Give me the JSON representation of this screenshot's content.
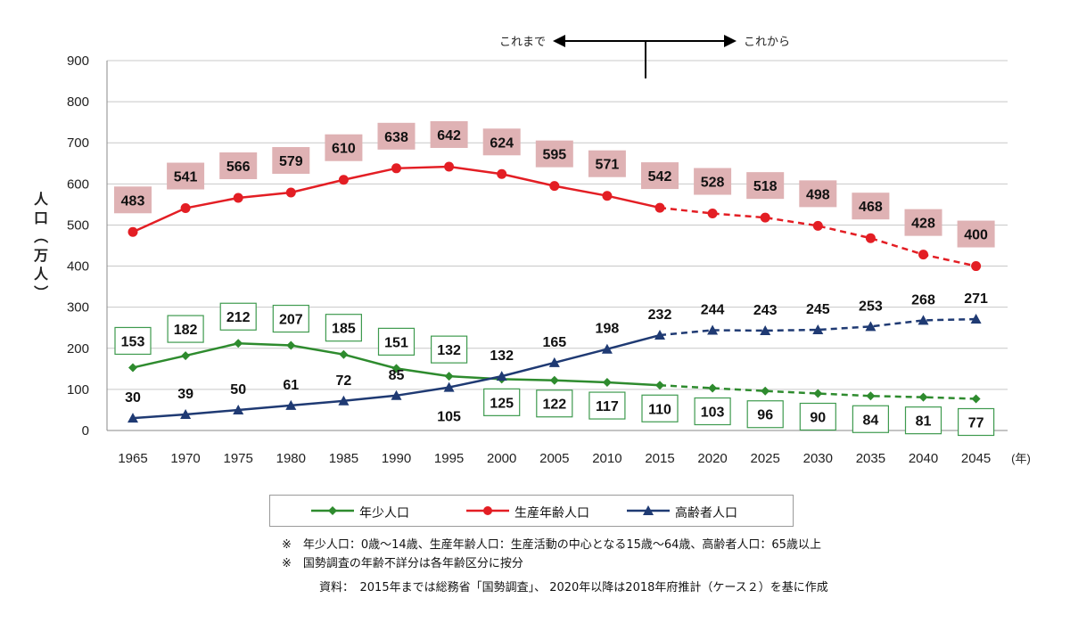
{
  "chart_data": {
    "type": "line",
    "x": [
      "1965",
      "1970",
      "1975",
      "1980",
      "1985",
      "1990",
      "1995",
      "2000",
      "2005",
      "2010",
      "2015",
      "2020",
      "2025",
      "2030",
      "2035",
      "2040",
      "2045"
    ],
    "x_unit": "(年)",
    "ylabel": "人口（万人）",
    "ylim": [
      0,
      900
    ],
    "yticks": [
      "0",
      "100",
      "200",
      "300",
      "400",
      "500",
      "600",
      "700",
      "800",
      "900"
    ],
    "grid": true,
    "split_labels": {
      "left": "これまで",
      "right": "これから",
      "at": "2015"
    },
    "series": [
      {
        "name": "生産年齢人口",
        "color": "#e31e24",
        "marker": "circle",
        "label_style": "pink-box",
        "values": [
          483,
          541,
          566,
          579,
          610,
          638,
          642,
          624,
          595,
          571,
          542,
          528,
          518,
          498,
          468,
          428,
          400
        ]
      },
      {
        "name": "年少人口",
        "color": "#2e8b2e",
        "marker": "diamond",
        "label_style": "green-outline-box",
        "values": [
          153,
          182,
          212,
          207,
          185,
          151,
          132,
          125,
          122,
          117,
          110,
          103,
          96,
          90,
          84,
          81,
          77
        ]
      },
      {
        "name": "高齢者人口",
        "color": "#1f3a73",
        "marker": "triangle",
        "label_style": "plain",
        "values": [
          30,
          39,
          50,
          61,
          72,
          85,
          105,
          132,
          165,
          198,
          232,
          244,
          243,
          245,
          253,
          268,
          271
        ]
      }
    ],
    "projection_from_index": 10,
    "legend": {
      "position": "bottom",
      "order": [
        "年少人口",
        "生産年齢人口",
        "高齢者人口"
      ]
    }
  },
  "notes": [
    "※　年少人口：0歳〜14歳、生産年齢人口：生産活動の中心となる15歳〜64歳、高齢者人口：65歳以上",
    "※　国勢調査の年齢不詳分は各年齢区分に按分"
  ],
  "source": "資料：　2015年までは総務省「国勢調査」、 2020年以降は2018年府推計（ケース２）を基に作成"
}
